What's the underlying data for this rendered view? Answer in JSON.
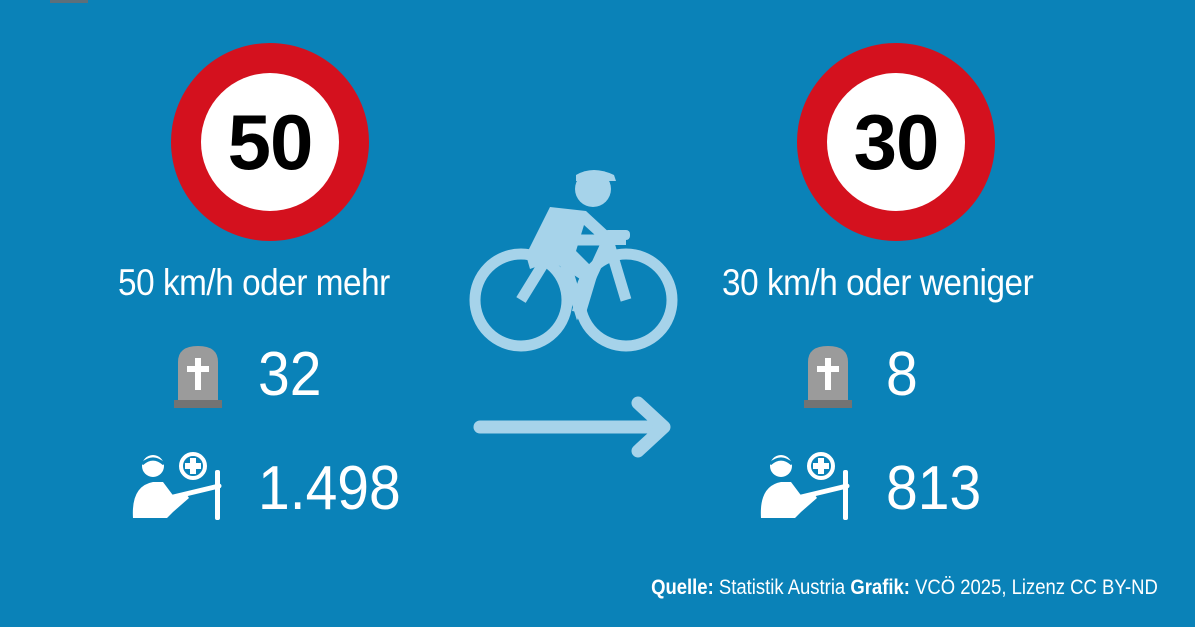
{
  "left": {
    "speed_sign": "50",
    "heading": "50 km/h oder mehr",
    "deaths": "32",
    "injured": "1.498"
  },
  "right": {
    "speed_sign": "30",
    "heading": "30 km/h oder weniger",
    "deaths": "8",
    "injured": "813"
  },
  "icons": {
    "cyclist": "cyclist-icon",
    "arrow": "arrow-right-icon",
    "gravestone": "gravestone-icon",
    "injured": "injured-person-icon"
  },
  "colors": {
    "background": "#0a82b8",
    "sign_ring": "#d4111e",
    "icon_light": "#a6d3ea",
    "gravestone": "#9b9b9b"
  },
  "source": {
    "label1": "Quelle:",
    "text1": "Statistik Austria",
    "label2": "Grafik:",
    "text2": "VCÖ 2025, Lizenz CC BY-ND"
  }
}
